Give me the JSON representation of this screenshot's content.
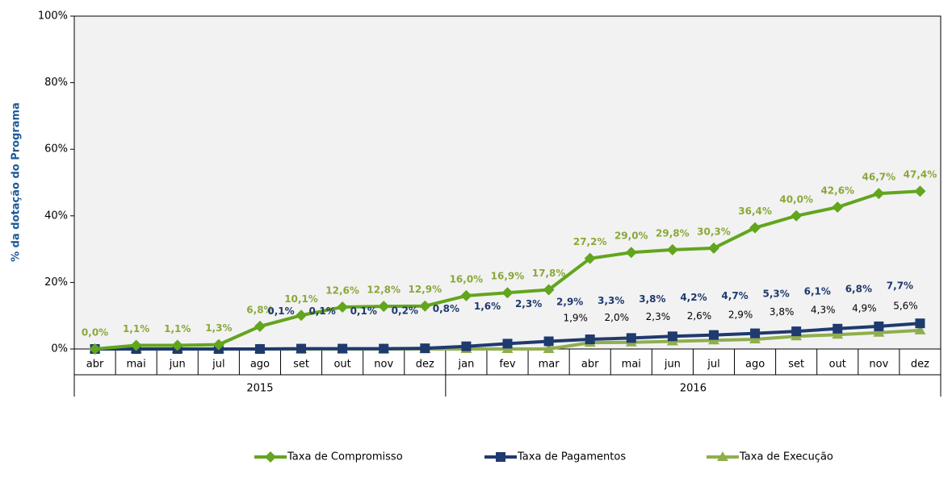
{
  "chart_data": {
    "type": "line",
    "y_axis_label": "% da dotação do Programa",
    "categories": [
      "abr",
      "mai",
      "jun",
      "jul",
      "ago",
      "set",
      "out",
      "nov",
      "dez",
      "jan",
      "fev",
      "mar",
      "abr",
      "mai",
      "jun",
      "jul",
      "ago",
      "set",
      "out",
      "nov",
      "dez"
    ],
    "year_groups": [
      {
        "label": "2015",
        "count": 9
      },
      {
        "label": "2016",
        "count": 12
      }
    ],
    "ylim": [
      0,
      100
    ],
    "yticks": [
      {
        "value": 0,
        "label": "0%"
      },
      {
        "value": 20,
        "label": "20%"
      },
      {
        "value": 40,
        "label": "40%"
      },
      {
        "value": 60,
        "label": "60%"
      },
      {
        "value": 80,
        "label": "80%"
      },
      {
        "value": 100,
        "label": "100%"
      }
    ],
    "legend": "bottom",
    "series": [
      {
        "name": "Taxa de Compromisso",
        "color": "#62a51e",
        "label_color": "#8aa83a",
        "marker": "diamond",
        "values": [
          0.0,
          1.1,
          1.1,
          1.3,
          6.8,
          10.1,
          12.6,
          12.8,
          12.9,
          16.0,
          16.9,
          17.8,
          27.2,
          29.0,
          29.8,
          30.3,
          36.4,
          40.0,
          42.6,
          46.7,
          47.4
        ],
        "value_labels": [
          "0,0%",
          "1,1%",
          "1,1%",
          "1,3%",
          "6,8%",
          "10,1%",
          "12,6%",
          "12,8%",
          "12,9%",
          "16,0%",
          "16,9%",
          "17,8%",
          "27,2%",
          "29,0%",
          "29,8%",
          "30,3%",
          "36,4%",
          "40,0%",
          "42,6%",
          "46,7%",
          "47,4%"
        ]
      },
      {
        "name": "Taxa de Pagamentos",
        "color": "#1f3a6e",
        "label_color": "#1f3a6e",
        "marker": "square",
        "values": [
          0,
          0,
          0,
          0,
          0,
          0.1,
          0.1,
          0.1,
          0.2,
          0.8,
          1.6,
          2.3,
          2.9,
          3.3,
          3.8,
          4.2,
          4.7,
          5.3,
          6.1,
          6.8,
          7.7
        ],
        "value_labels": [
          null,
          null,
          null,
          null,
          null,
          "0,1%",
          "0,1%",
          "0,1%",
          "0,2%",
          "0,8%",
          "1,6%",
          "2,3%",
          "2,9%",
          "3,3%",
          "3,8%",
          "4,2%",
          "4,7%",
          "5,3%",
          "6,1%",
          "6,8%",
          "7,7%"
        ]
      },
      {
        "name": "Taxa de Execução",
        "color": "#8fae4e",
        "label_color": "#000000",
        "marker": "triangle",
        "values": [
          0,
          0,
          0,
          0,
          0,
          0,
          0,
          0,
          0,
          0,
          0,
          0,
          1.9,
          2.0,
          2.3,
          2.6,
          2.9,
          3.8,
          4.3,
          4.9,
          5.6
        ],
        "value_labels": [
          null,
          null,
          null,
          null,
          null,
          null,
          null,
          null,
          null,
          null,
          null,
          null,
          "1,9%",
          "2,0%",
          "2,3%",
          "2,6%",
          "2,9%",
          "3,8%",
          "4,3%",
          "4,9%",
          "5,6%"
        ]
      }
    ]
  }
}
